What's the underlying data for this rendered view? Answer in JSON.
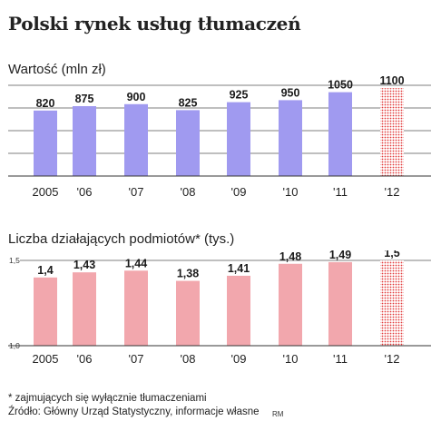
{
  "title": "Polski rynek usług tłumaczeń",
  "footnote": "* zajmujących się wyłącznie tłumaczeniami",
  "source": "Źródło: Główny Urząd Statystyczny, informacje własne",
  "credit": "RM",
  "colors": {
    "value_bar": "#a09af0",
    "value_bar_forecast": "#e23a3a",
    "entities_bar": "#f2a7ad",
    "entities_bar_forecast": "#e23a3a",
    "grid": "#555555"
  },
  "chart_data": [
    {
      "type": "bar",
      "title": "Wartość (mln zł)",
      "categories": [
        "2005",
        "'06",
        "'07",
        "'08",
        "'09",
        "'10",
        "'11",
        "'12"
      ],
      "values": [
        820,
        875,
        900,
        825,
        925,
        950,
        1050,
        1100
      ],
      "value_labels": [
        "820",
        "875",
        "900",
        "825",
        "925",
        "950",
        "1050",
        "1100"
      ],
      "forecast_index": 7,
      "ylim": [
        0,
        1250
      ],
      "grid": true
    },
    {
      "type": "bar",
      "title": "Liczba działających podmiotów* (tys.)",
      "categories": [
        "2005",
        "'06",
        "'07",
        "'08",
        "'09",
        "'10",
        "'11",
        "'12"
      ],
      "values": [
        1.4,
        1.43,
        1.44,
        1.38,
        1.41,
        1.48,
        1.49,
        1.5
      ],
      "value_labels": [
        "1,4",
        "1,43",
        "1,44",
        "1,38",
        "1,41",
        "1,48",
        "1,49",
        "1,5"
      ],
      "y_tick_labels": [
        "1,0",
        "1,5"
      ],
      "forecast_index": 7,
      "ylim": [
        1.0,
        1.5
      ],
      "grid": false
    }
  ]
}
